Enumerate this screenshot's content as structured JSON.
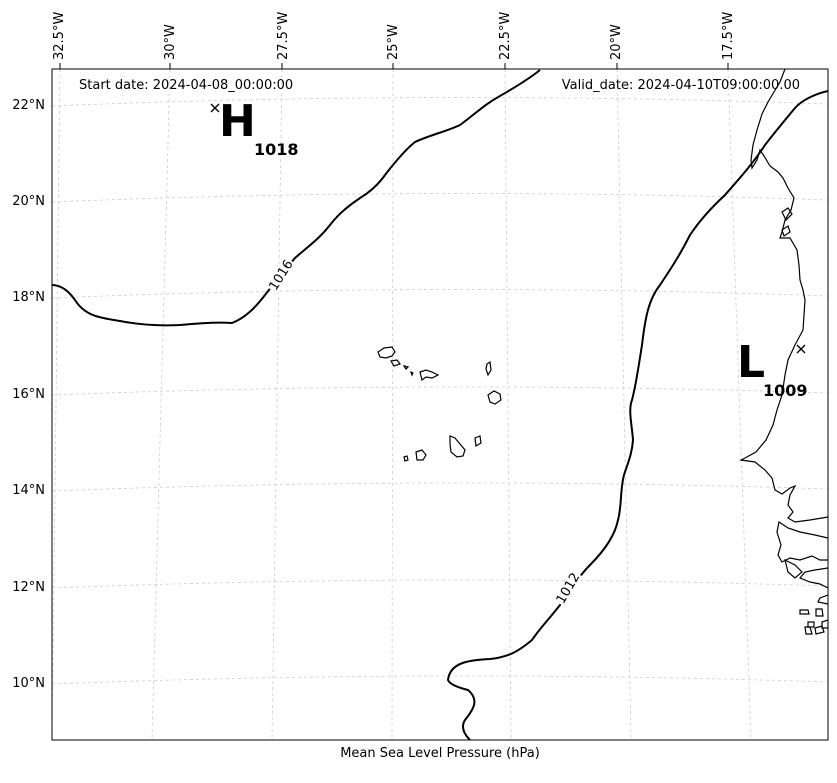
{
  "title": {
    "start_date": "Start date: 2024-04-08_00:00:00",
    "valid_date": "Valid_date: 2024-04-10T09:00:00.00"
  },
  "caption": "Mean Sea Level Pressure (hPa)",
  "longitude_labels": [
    "32.5°W",
    "30°W",
    "27.5°W",
    "25°W",
    "22.5°W",
    "20°W",
    "17.5°W"
  ],
  "latitude_labels": [
    "22°N",
    "20°N",
    "18°N",
    "16°N",
    "14°N",
    "12°N",
    "10°N"
  ],
  "pressure_centers": [
    {
      "type": "high",
      "letter": "H",
      "value": "1018"
    },
    {
      "type": "low",
      "letter": "L",
      "value": "1009"
    }
  ],
  "isobars": [
    {
      "value": "1016"
    },
    {
      "value": "1012"
    }
  ],
  "colors": {
    "isobar": "#000000",
    "coastline": "#000000",
    "grid": "#cccccc",
    "background": "#ffffff"
  }
}
